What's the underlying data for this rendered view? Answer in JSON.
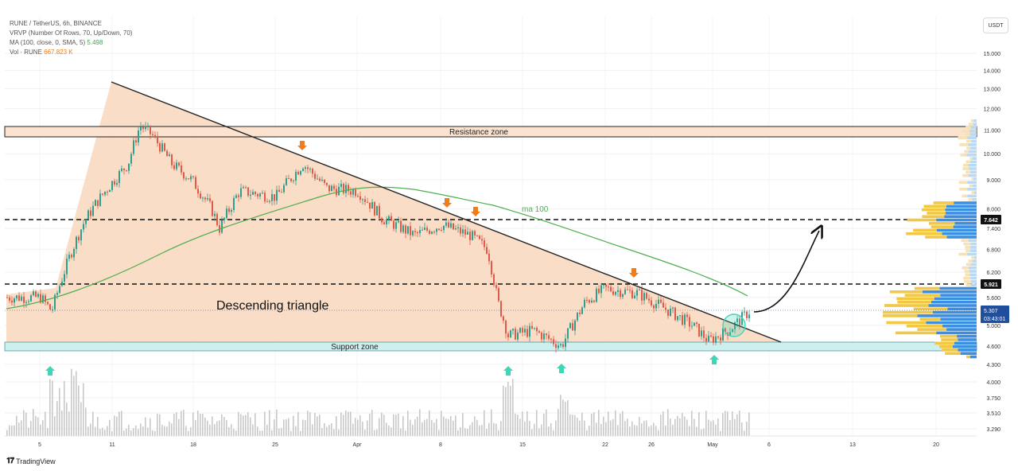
{
  "legend": {
    "symbol_line": "RUNE / TetherUS, 6h, BINANCE",
    "vrvp_line": "VRVP (Number Of Rows, 70, Up/Down, 70)",
    "ma_label": "MA (100, close, 0, SMA, 5)",
    "ma_value": "5.498",
    "vol_label": "Vol · RUNE",
    "vol_value": "667.823 K"
  },
  "currency_button": "USDT",
  "branding": "TradingView",
  "colors": {
    "triangle_fill": "#f8d9c0",
    "resistance_fill": "#fbe3d0",
    "support_fill": "#cfeeee",
    "ma_line": "#4caf50",
    "arrow_down": "#f07c1c",
    "arrow_up": "#40d5b8",
    "candle_up": "#2e9e8f",
    "candle_down": "#e05a47",
    "volume_bar": "#c9c9c9"
  },
  "annotations": {
    "resistance_label": "Resistance zone",
    "support_label": "Support zone",
    "pattern_label": "Descending triangle",
    "ma_line_label": "ma 100"
  },
  "price_tags": {
    "level_upper": "7.642",
    "level_lower": "5.921",
    "current_price": "5.307",
    "countdown": "03:43:01"
  },
  "chart_data": {
    "type": "line",
    "title": "",
    "y_scale": "log",
    "ylim": [
      3.2,
      17
    ],
    "x_ticks": [
      "5",
      "11",
      "18",
      "25",
      "Apr",
      "8",
      "15",
      "22",
      "26",
      "May",
      "6",
      "13",
      "20"
    ],
    "y_ticks": [
      "15.000",
      "14.000",
      "13.000",
      "12.000",
      "11.000",
      "10.000",
      "9.000",
      "8.000",
      "7.400",
      "6.800",
      "6.200",
      "5.600",
      "5.000",
      "4.600",
      "4.300",
      "4.000",
      "3.750",
      "3.510",
      "3.290"
    ],
    "series": [
      {
        "name": "RUNE/USDT",
        "x": [
          "Mar 2",
          "Mar 5",
          "Mar 7",
          "Mar 8",
          "Mar 9",
          "Mar 10",
          "Mar 12",
          "Mar 13",
          "Mar 14",
          "Mar 15",
          "Mar 17",
          "Mar 18",
          "Mar 20",
          "Mar 22",
          "Mar 25",
          "Mar 27",
          "Mar 29",
          "Apr 1",
          "Apr 3",
          "Apr 5",
          "Apr 8",
          "Apr 10",
          "Apr 12",
          "Apr 13",
          "Apr 14",
          "Apr 16",
          "Apr 18",
          "Apr 20",
          "Apr 22",
          "Apr 24",
          "Apr 26",
          "Apr 28",
          "Apr 30",
          "May 2",
          "May 4"
        ],
        "values": [
          5.6,
          5.6,
          5.3,
          6.8,
          7.6,
          8.2,
          9.6,
          11.2,
          10.8,
          9.6,
          9.0,
          8.0,
          7.4,
          8.6,
          8.4,
          9.6,
          8.7,
          8.6,
          7.7,
          7.2,
          7.5,
          7.2,
          6.8,
          5.5,
          4.8,
          4.9,
          4.6,
          5.5,
          5.8,
          5.7,
          5.3,
          5.0,
          4.7,
          4.9,
          5.3
        ]
      },
      {
        "name": "ma 100",
        "x": [
          "Mar 2",
          "Mar 9",
          "Mar 16",
          "Mar 23",
          "Mar 30",
          "Apr 3",
          "Apr 8",
          "Apr 14",
          "Apr 21",
          "Apr 28",
          "May 4"
        ],
        "values": [
          5.5,
          5.9,
          6.9,
          7.6,
          8.4,
          8.8,
          8.1,
          7.8,
          7.0,
          6.3,
          5.5
        ]
      }
    ],
    "levels": {
      "resistance_zone": [
        10.7,
        11.3
      ],
      "support_zone": [
        4.5,
        4.7
      ],
      "dashed_upper": 7.642,
      "dashed_lower": 5.921
    },
    "trendline": {
      "from": [
        "Mar 10",
        13.3
      ],
      "to": [
        "May 6",
        4.7
      ]
    },
    "volume_profile_rows": 70
  }
}
